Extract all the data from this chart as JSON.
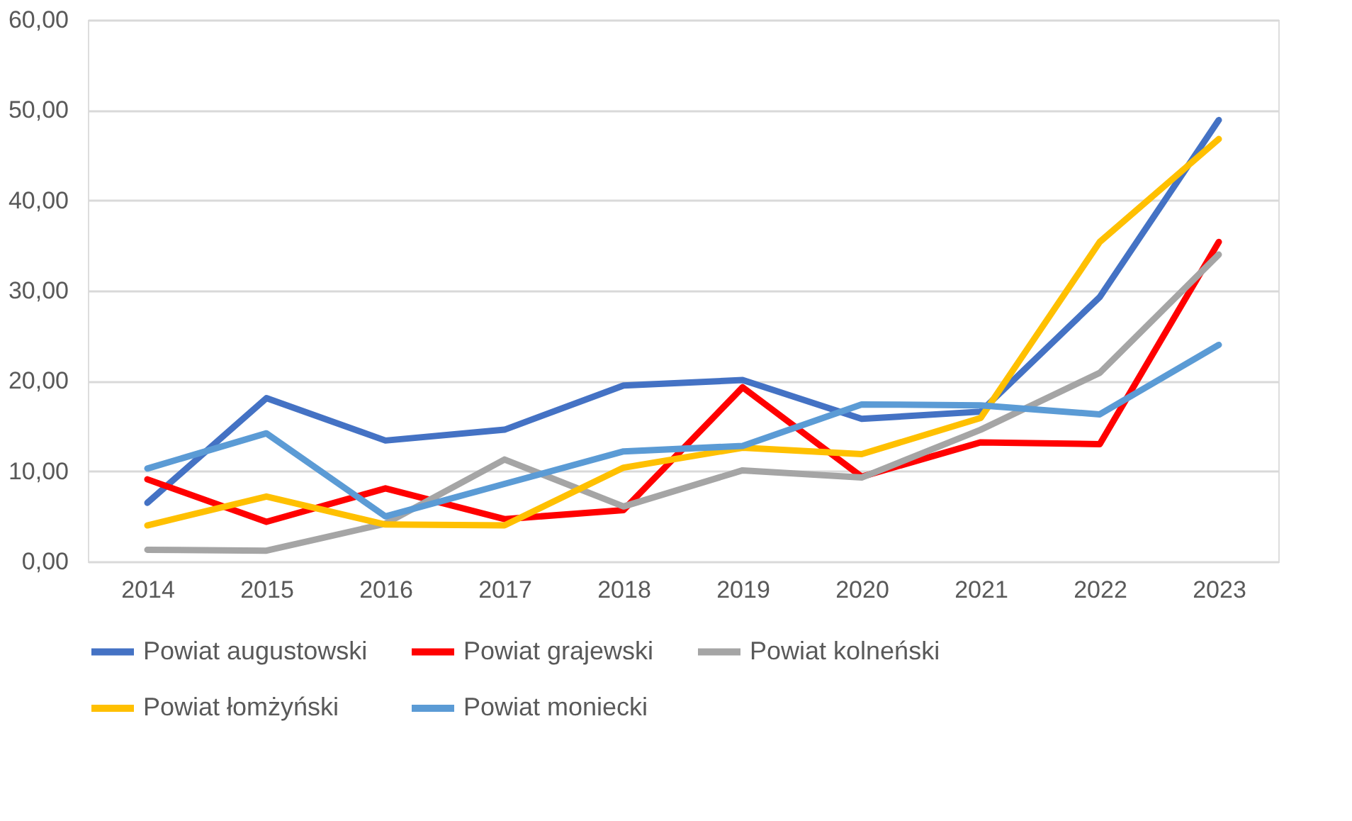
{
  "chart_data": {
    "type": "line",
    "categories": [
      "2014",
      "2015",
      "2016",
      "2017",
      "2018",
      "2019",
      "2020",
      "2021",
      "2022",
      "2023"
    ],
    "series": [
      {
        "name": "Powiat augustowski",
        "color": "#4472c4",
        "values": [
          6.5,
          18.1,
          13.4,
          14.6,
          19.5,
          20.1,
          15.8,
          16.6,
          29.3,
          48.9
        ]
      },
      {
        "name": "Powiat grajewski",
        "color": "#ff0000",
        "values": [
          9.1,
          4.4,
          8.1,
          4.7,
          5.7,
          19.3,
          9.4,
          13.2,
          13.0,
          35.4
        ]
      },
      {
        "name": "Powiat kolneński",
        "color": "#a5a5a5",
        "values": [
          1.3,
          1.2,
          4.2,
          11.3,
          6.1,
          10.1,
          9.3,
          14.6,
          20.9,
          34.0
        ]
      },
      {
        "name": "Powiat łomżyński",
        "color": "#ffc000",
        "values": [
          4.0,
          7.2,
          4.1,
          4.0,
          10.4,
          12.6,
          11.9,
          15.9,
          35.4,
          46.8
        ]
      },
      {
        "name": "Powiat moniecki",
        "color": "#5b9bd5",
        "values": [
          10.3,
          14.2,
          5.0,
          8.6,
          12.2,
          12.8,
          17.4,
          17.3,
          16.3,
          24.0
        ]
      }
    ],
    "ylim": [
      0,
      60
    ],
    "yticks": [
      {
        "value": 0,
        "label": "0,00"
      },
      {
        "value": 10,
        "label": "10,00"
      },
      {
        "value": 20,
        "label": "20,00"
      },
      {
        "value": 30,
        "label": "30,00"
      },
      {
        "value": 40,
        "label": "40,00"
      },
      {
        "value": 50,
        "label": "50,00"
      },
      {
        "value": 60,
        "label": "60,00"
      }
    ],
    "grid": "y",
    "legend": "bottom",
    "marker": "none",
    "line_style": "solid"
  }
}
